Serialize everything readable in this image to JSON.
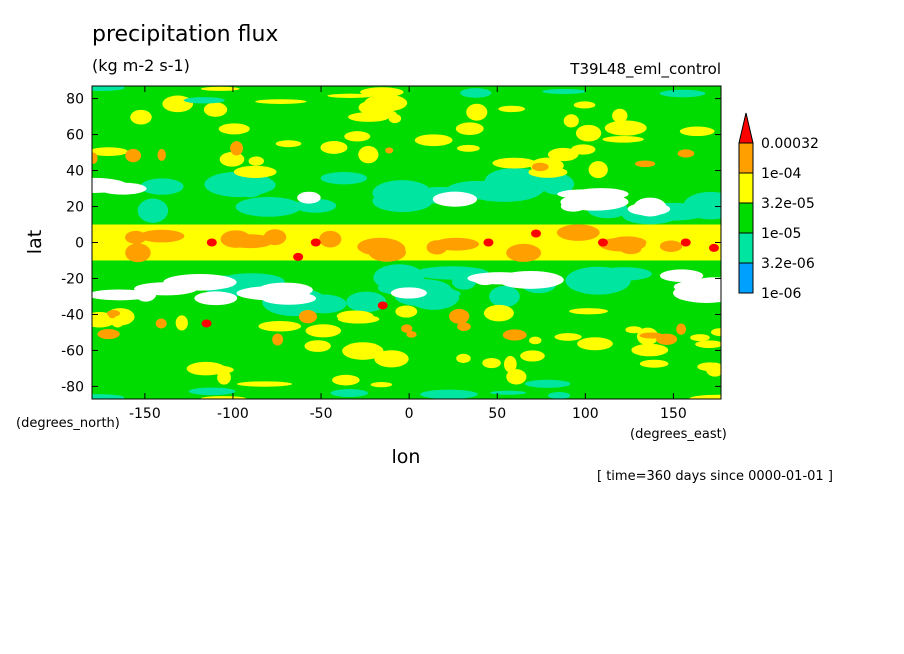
{
  "chart_data": {
    "type": "heatmap",
    "title": "precipitation flux",
    "units": "(kg m-2 s-1)",
    "experiment": "T39L48_eml_control",
    "xlabel": "lon",
    "ylabel": "lat",
    "x_units": "(degrees_east)",
    "y_units": "(degrees_north)",
    "footer": "[ time=360 days since 0000-01-01 ]",
    "xlim": [
      -180,
      177
    ],
    "ylim": [
      -87,
      87
    ],
    "x_ticks": [
      -150,
      -100,
      -50,
      0,
      50,
      100,
      150
    ],
    "x_tick_labels": [
      "-150",
      "-100",
      "-50",
      "0",
      "50",
      "100",
      "150"
    ],
    "y_ticks": [
      -80,
      -60,
      -40,
      -20,
      0,
      20,
      40,
      60,
      80
    ],
    "y_tick_labels": [
      "-80",
      "-60",
      "-40",
      "-20",
      "0",
      "20",
      "40",
      "60",
      "80"
    ],
    "colorbar": {
      "levels": [
        "1e-06",
        "3.2e-06",
        "1e-05",
        "3.2e-05",
        "1e-04",
        "0.00032"
      ],
      "colors": [
        "#00a0ff",
        "#00e6a0",
        "#00dc00",
        "#ffff00",
        "#ffa000",
        "#ff0000"
      ],
      "below_color": "#ffffff",
      "extend": "max"
    },
    "grid": false
  }
}
